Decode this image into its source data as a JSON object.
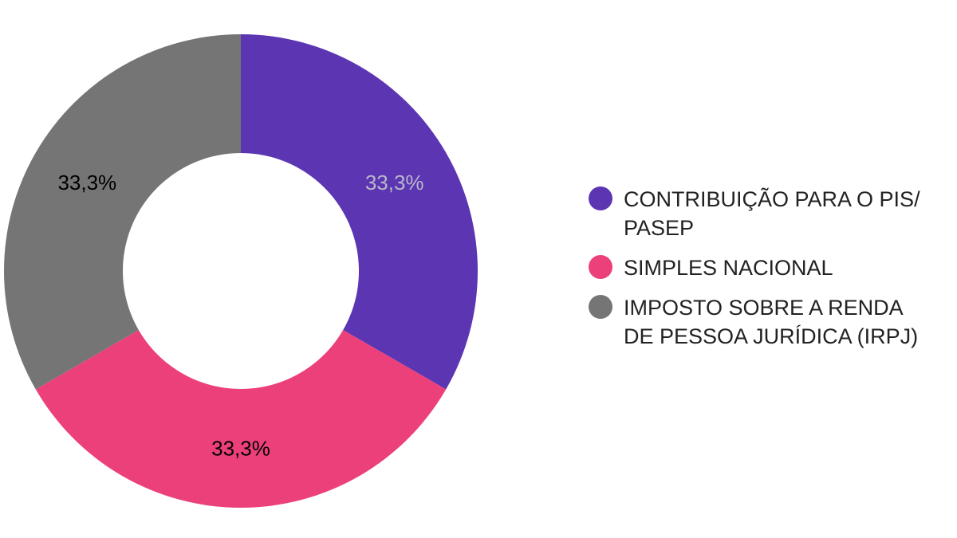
{
  "chart_data": {
    "type": "pie",
    "donut": true,
    "categories": [
      "CONTRIBUIÇÃO PARA O PIS/\nPASEP",
      "SIMPLES NACIONAL",
      "IMPOSTO SOBRE A RENDA\nDE PESSOA JURÍDICA (IRPJ)"
    ],
    "values": [
      33.3,
      33.3,
      33.3
    ],
    "value_labels": [
      "33,3%",
      "33,3%",
      "33,3%"
    ],
    "colors": [
      "#5c35b3",
      "#ec407a",
      "#757575"
    ],
    "label_colors": [
      "#b8b8c8",
      "#000000",
      "#000000"
    ],
    "legend_position": "right"
  }
}
